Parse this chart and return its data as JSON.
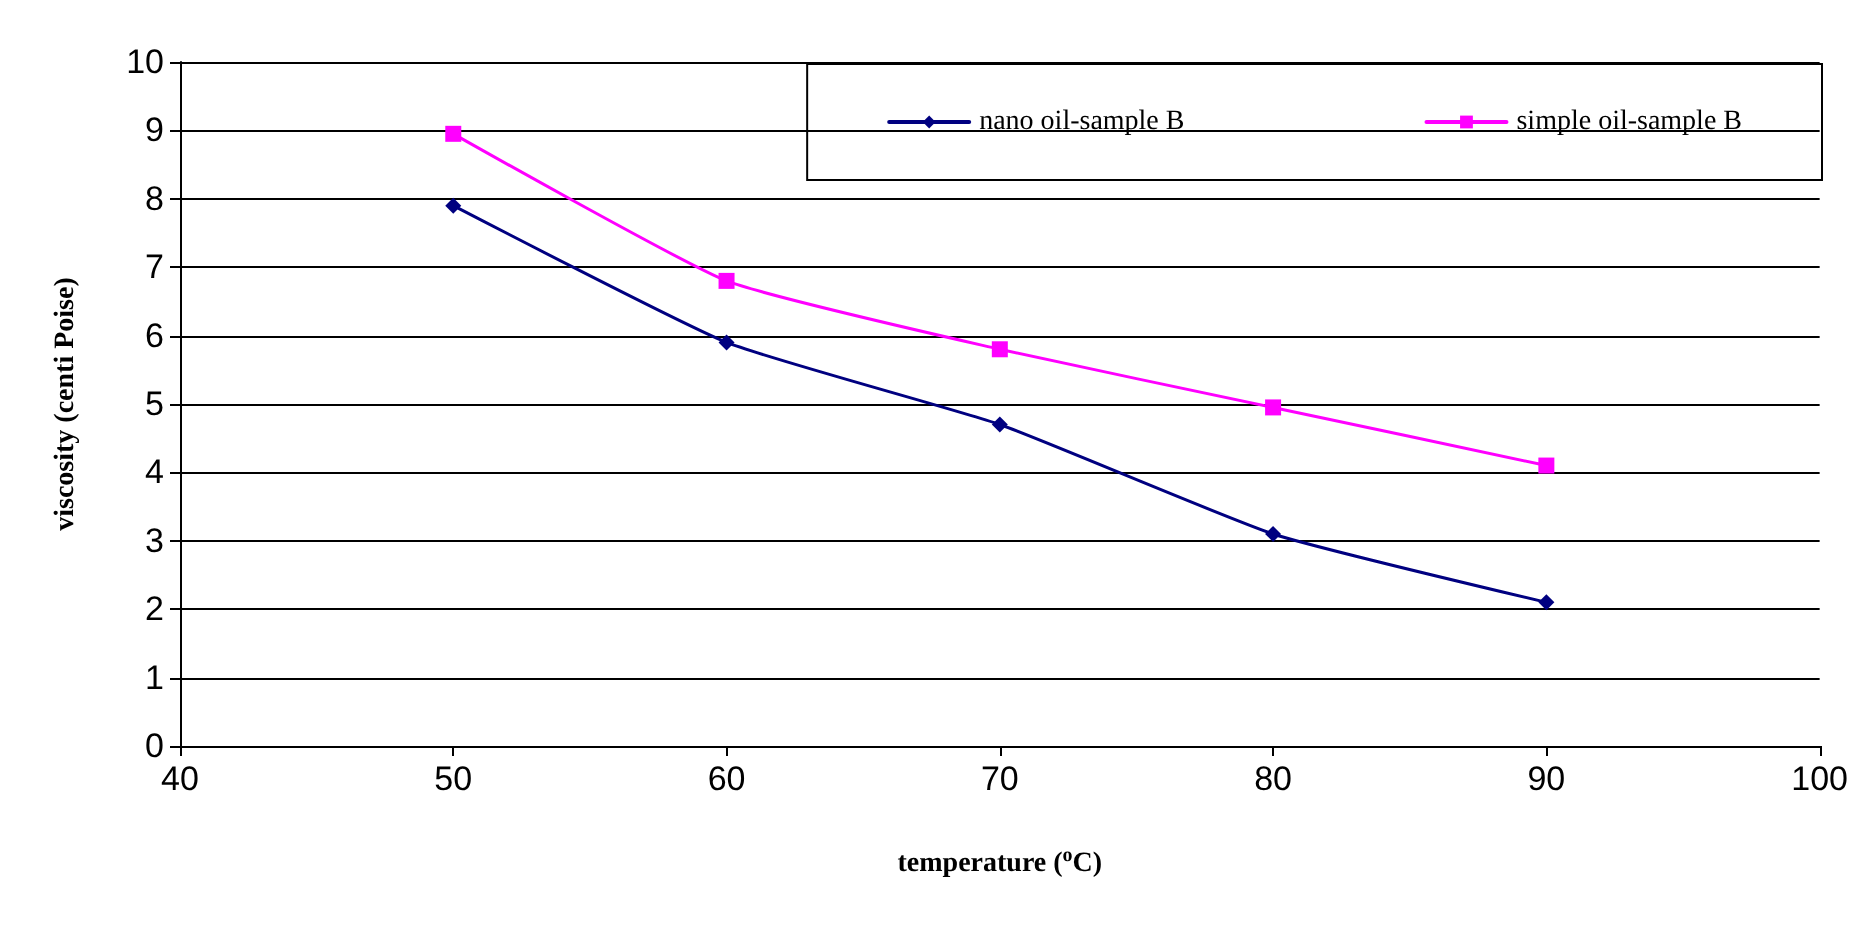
{
  "chart_data": {
    "type": "line",
    "xlabel": "temperature ($^{o}$C)",
    "ylabel": "viscosity (centi Poise)",
    "x": [
      50,
      60,
      70,
      80,
      90
    ],
    "series": [
      {
        "name": "nano oil-sample B",
        "color": "#000080",
        "marker": "diamond",
        "values": [
          7.9,
          5.9,
          4.7,
          3.1,
          2.1
        ]
      },
      {
        "name": "simple oil-sample B",
        "color": "#ff00ff",
        "marker": "square",
        "values": [
          8.95,
          6.8,
          5.8,
          4.95,
          4.1
        ]
      }
    ],
    "xlim": [
      40,
      100
    ],
    "xticks": [
      40,
      50,
      60,
      70,
      80,
      90,
      100
    ],
    "ylim": [
      0,
      10
    ],
    "yticks": [
      0,
      1,
      2,
      3,
      4,
      5,
      6,
      7,
      8,
      9,
      10
    ],
    "grid": "y",
    "legend": "top right",
    "line_style": "solid"
  }
}
